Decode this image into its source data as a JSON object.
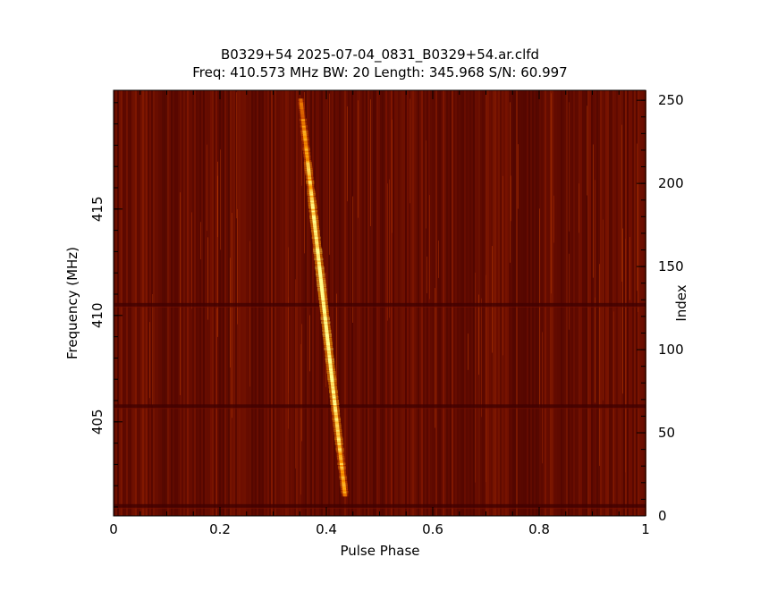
{
  "chart_data": {
    "type": "heatmap",
    "title": "B0329+54 2025-07-04_0831_B0329+54.ar.clfd",
    "subtitle": "Freq: 410.573 MHz BW: 20 Length: 345.968 S/N: 60.997",
    "xlabel": "Pulse Phase",
    "ylabel": "Frequency (MHz)",
    "y2label": "Index",
    "xlim": [
      0,
      1
    ],
    "ylim": [
      400.58,
      420.58
    ],
    "y2lim": [
      0,
      256
    ],
    "x_ticks": [
      "0",
      "0.2",
      "0.4",
      "0.6",
      "0.8",
      "1"
    ],
    "y_ticks": [
      "405",
      "410",
      "415"
    ],
    "y2_ticks": [
      "0",
      "50",
      "100",
      "150",
      "200",
      "250"
    ],
    "colormap": [
      "#3c0000",
      "#7a1200",
      "#c84400",
      "#ff9a00",
      "#ffff90"
    ],
    "pulse_track": {
      "phase_at_low_freq": 0.435,
      "phase_at_high_freq": 0.352,
      "index_low": 12,
      "index_high": 250
    },
    "notable_channels": [
      6,
      66,
      127
    ]
  }
}
